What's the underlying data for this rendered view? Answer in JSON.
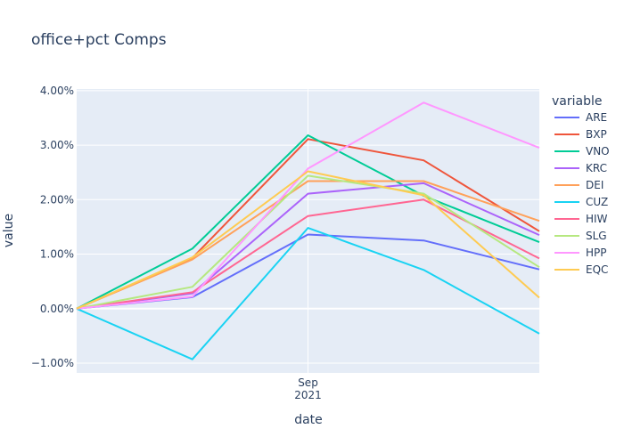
{
  "chart_data": {
    "type": "line",
    "title": "office+pct Comps",
    "xlabel": "date",
    "ylabel": "value",
    "x": [
      "2021-08-02",
      "2021-08-17",
      "2021-09-01",
      "2021-09-16",
      "2021-10-01"
    ],
    "x_ticks": [
      {
        "value": "2021-09-01",
        "line1": "Sep",
        "line2": "2021"
      }
    ],
    "xlim": [
      "2021-08-02",
      "2021-10-01"
    ],
    "ylim": [
      -0.0118,
      0.0403
    ],
    "y_ticks": [
      -0.01,
      0,
      0.01,
      0.02,
      0.03,
      0.04
    ],
    "y_tick_labels": [
      "−1.00%",
      "0.00%",
      "1.00%",
      "2.00%",
      "3.00%",
      "4.00%"
    ],
    "grid": true,
    "plot_bgcolor": "#e5ecf6",
    "legend": {
      "title": "variable",
      "placement": "right"
    },
    "series": [
      {
        "name": "ARE",
        "color": "#636efa",
        "values": [
          0,
          0.0021,
          0.0136,
          0.0125,
          0.0072
        ]
      },
      {
        "name": "BXP",
        "color": "#ef553b",
        "values": [
          0,
          0.0093,
          0.0311,
          0.0272,
          0.0142
        ]
      },
      {
        "name": "VNO",
        "color": "#00cc96",
        "values": [
          0,
          0.011,
          0.0318,
          0.0207,
          0.0122
        ]
      },
      {
        "name": "KRC",
        "color": "#ab63fa",
        "values": [
          0,
          0.0028,
          0.0211,
          0.023,
          0.0135
        ]
      },
      {
        "name": "DEI",
        "color": "#ffa15a",
        "values": [
          0,
          0.009,
          0.0234,
          0.0234,
          0.0161
        ]
      },
      {
        "name": "CUZ",
        "color": "#19d3f3",
        "values": [
          0,
          -0.0093,
          0.0148,
          0.0071,
          -0.0046
        ]
      },
      {
        "name": "HIW",
        "color": "#ff6692",
        "values": [
          0,
          0.003,
          0.017,
          0.02,
          0.0092
        ]
      },
      {
        "name": "SLG",
        "color": "#b6e880",
        "values": [
          0,
          0.004,
          0.0244,
          0.0211,
          0.0076
        ]
      },
      {
        "name": "HPP",
        "color": "#ff97ff",
        "values": [
          0,
          0.0022,
          0.0257,
          0.0378,
          0.0295
        ]
      },
      {
        "name": "EQC",
        "color": "#fecb52",
        "values": [
          0,
          0.0094,
          0.0252,
          0.0208,
          0.002
        ]
      }
    ]
  }
}
